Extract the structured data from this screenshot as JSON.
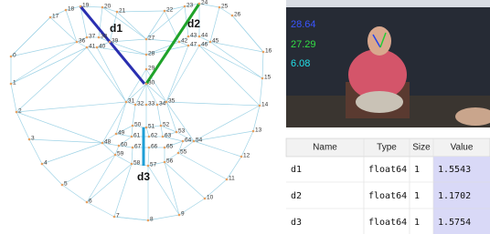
{
  "diagram": {
    "landmarks": [
      "0",
      "1",
      "2",
      "3",
      "4",
      "5",
      "6",
      "7",
      "8",
      "9",
      "10",
      "11",
      "12",
      "13",
      "14",
      "15",
      "16",
      "17",
      "18",
      "19",
      "20",
      "21",
      "22",
      "23",
      "24",
      "25",
      "26",
      "27",
      "28",
      "29",
      "30",
      "31",
      "32",
      "33",
      "34",
      "35",
      "36",
      "37",
      "38",
      "39",
      "40",
      "41",
      "42",
      "43",
      "44",
      "45",
      "46",
      "47",
      "48",
      "49",
      "50",
      "51",
      "52",
      "53",
      "54",
      "55",
      "56",
      "57",
      "58",
      "59",
      "60",
      "61",
      "62",
      "63",
      "64",
      "65",
      "66",
      "67"
    ],
    "distance_labels": [
      "d1",
      "d2",
      "d3"
    ]
  },
  "video": {
    "overlay": [
      "28.64",
      "27.29",
      "6.08"
    ]
  },
  "table": {
    "columns": [
      "Name",
      "Type",
      "Size",
      "Value"
    ],
    "rows": [
      [
        "d1",
        "float64",
        "1",
        "1.5543"
      ],
      [
        "d2",
        "float64",
        "1",
        "1.1702"
      ],
      [
        "d3",
        "float64",
        "1",
        "1.5754"
      ]
    ]
  }
}
